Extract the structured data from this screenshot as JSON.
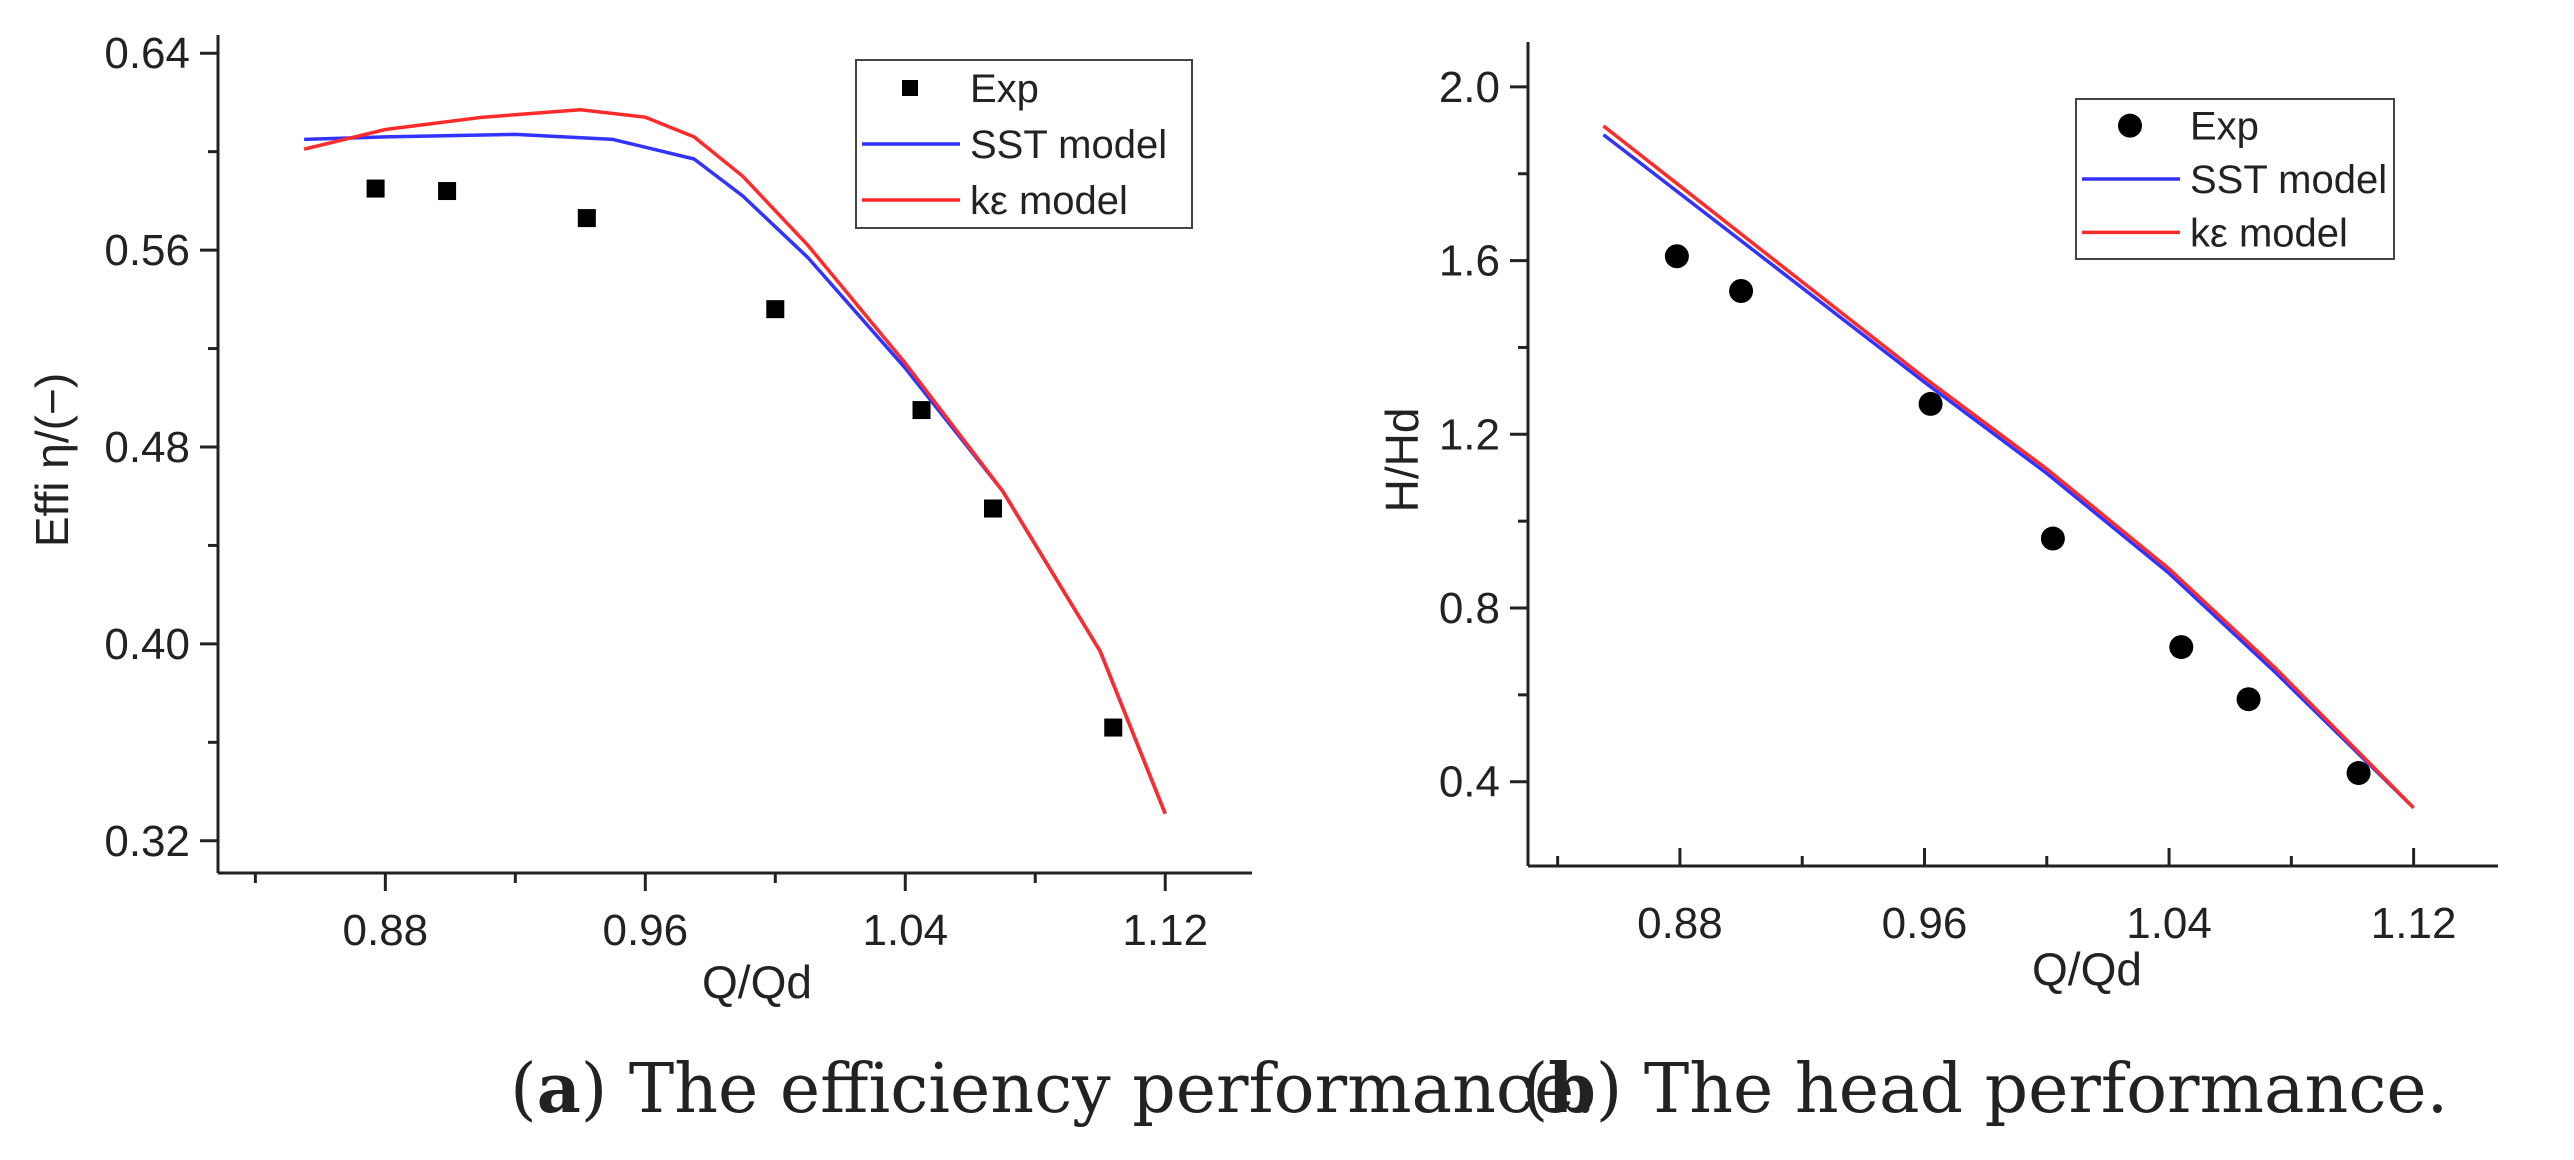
{
  "chart_data": [
    {
      "type": "line",
      "id": "a",
      "xlabel": "Q/Qd",
      "ylabel": "Effi η/(−)",
      "xlim": [
        0.8285,
        1.1467
      ],
      "ylim": [
        0.3069,
        0.6474
      ],
      "xticks": [
        0.88,
        0.96,
        1.04,
        1.12
      ],
      "xtick_labels": [
        "0.88",
        "0.96",
        "1.04",
        "1.12"
      ],
      "yticks": [
        0.32,
        0.4,
        0.48,
        0.56,
        0.64
      ],
      "ytick_labels": [
        "0.32",
        "0.40",
        "0.48",
        "0.56",
        "0.64"
      ],
      "legend_position": "top-right",
      "series": [
        {
          "name": "Exp",
          "kind": "marker",
          "marker": "square",
          "color": "#000000",
          "x": [
            0.877,
            0.899,
            0.942,
            1.0,
            1.045,
            1.067,
            1.104
          ],
          "y": [
            0.585,
            0.584,
            0.573,
            0.536,
            0.495,
            0.455,
            0.366
          ]
        },
        {
          "name": "SST model",
          "kind": "line",
          "color": "#3333ff",
          "x": [
            0.855,
            0.88,
            0.92,
            0.95,
            0.975,
            0.99,
            1.01,
            1.04,
            1.07,
            1.1,
            1.12
          ],
          "y": [
            0.605,
            0.606,
            0.607,
            0.605,
            0.597,
            0.582,
            0.557,
            0.512,
            0.462,
            0.397,
            0.331
          ]
        },
        {
          "name": "kε model",
          "kind": "line",
          "color": "#ff2a2a",
          "x": [
            0.855,
            0.88,
            0.91,
            0.94,
            0.96,
            0.975,
            0.99,
            1.01,
            1.04,
            1.07,
            1.1,
            1.12
          ],
          "y": [
            0.601,
            0.609,
            0.614,
            0.617,
            0.614,
            0.606,
            0.59,
            0.562,
            0.514,
            0.462,
            0.397,
            0.331
          ]
        }
      ],
      "caption_label": "a",
      "caption_text": ") The efficiency performance."
    },
    {
      "type": "line",
      "id": "b",
      "xlabel": "Q/Qd",
      "ylabel": "H/Hd",
      "xlim": [
        0.8303,
        1.1476
      ],
      "ylim": [
        0.2059,
        2.1034
      ],
      "xticks": [
        0.88,
        0.96,
        1.04,
        1.12
      ],
      "xtick_labels": [
        "0.88",
        "0.96",
        "1.04",
        "1.12"
      ],
      "yticks": [
        0.4,
        0.8,
        1.2,
        1.6,
        2.0
      ],
      "ytick_labels": [
        "0.4",
        "0.8",
        "1.2",
        "1.6",
        "2.0"
      ],
      "legend_position": "top-right",
      "series": [
        {
          "name": "Exp",
          "kind": "marker",
          "marker": "circle",
          "color": "#000000",
          "x": [
            0.879,
            0.9,
            0.962,
            1.002,
            1.044,
            1.066,
            1.102
          ],
          "y": [
            1.61,
            1.53,
            1.27,
            0.96,
            0.71,
            0.59,
            0.42
          ]
        },
        {
          "name": "SST model",
          "kind": "line",
          "color": "#3333ff",
          "x": [
            0.855,
            0.96,
            1.0,
            1.04,
            1.075,
            1.12
          ],
          "y": [
            1.89,
            1.32,
            1.11,
            0.88,
            0.65,
            0.34
          ]
        },
        {
          "name": "kε model",
          "kind": "line",
          "color": "#ff2a2a",
          "x": [
            0.855,
            0.96,
            1.0,
            1.04,
            1.075,
            1.12
          ],
          "y": [
            1.91,
            1.33,
            1.12,
            0.89,
            0.66,
            0.34
          ]
        }
      ],
      "caption_label": "b",
      "caption_text": ") The head performance."
    }
  ]
}
